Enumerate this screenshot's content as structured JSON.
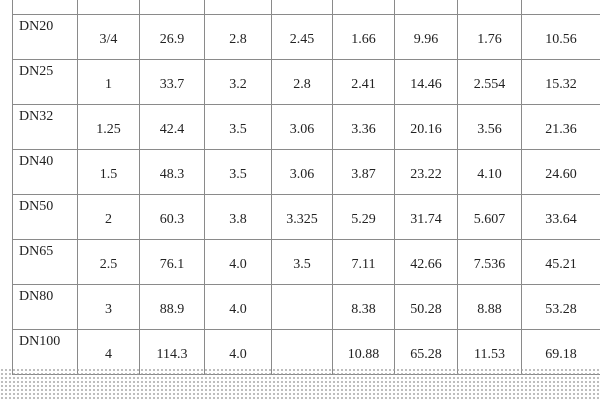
{
  "table": {
    "rows": [
      [
        "DN20",
        "3/4",
        "26.9",
        "2.8",
        "2.45",
        "1.66",
        "9.96",
        "1.76",
        "10.56"
      ],
      [
        "DN25",
        "1",
        "33.7",
        "3.2",
        "2.8",
        "2.41",
        "14.46",
        "2.554",
        "15.32"
      ],
      [
        "DN32",
        "1.25",
        "42.4",
        "3.5",
        "3.06",
        "3.36",
        "20.16",
        "3.56",
        "21.36"
      ],
      [
        "DN40",
        "1.5",
        "48.3",
        "3.5",
        "3.06",
        "3.87",
        "23.22",
        "4.10",
        "24.60"
      ],
      [
        "DN50",
        "2",
        "60.3",
        "3.8",
        "3.325",
        "5.29",
        "31.74",
        "5.607",
        "33.64"
      ],
      [
        "DN65",
        "2.5",
        "76.1",
        "4.0",
        "3.5",
        "7.11",
        "42.66",
        "7.536",
        "45.21"
      ],
      [
        "DN80",
        "3",
        "88.9",
        "4.0",
        null,
        "8.38",
        "50.28",
        "8.88",
        "53.28"
      ],
      [
        "DN100",
        "4",
        "114.3",
        "4.0",
        null,
        "10.88",
        "65.28",
        "11.53",
        "69.18"
      ]
    ]
  }
}
